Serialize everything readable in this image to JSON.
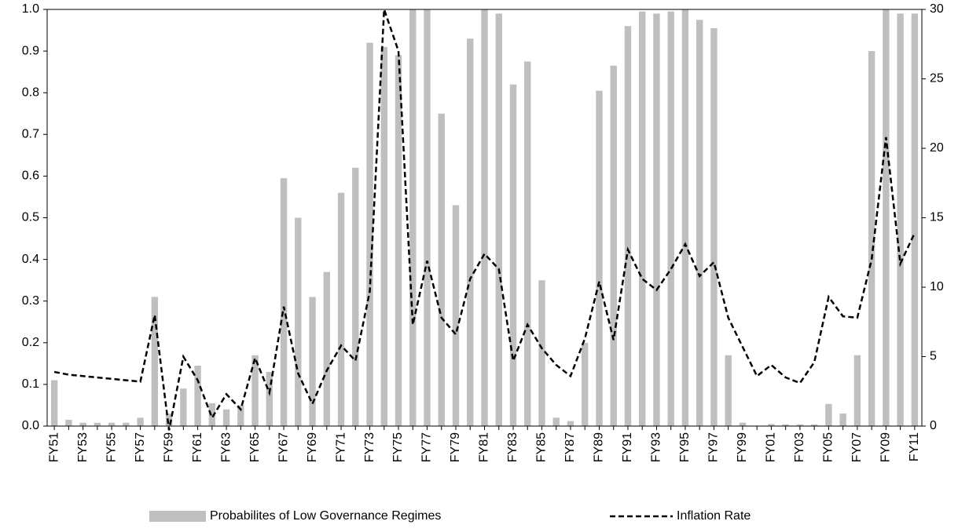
{
  "chart_data": {
    "type": "bar_line",
    "categories": [
      "FY51",
      null,
      "FY53",
      null,
      "FY55",
      null,
      "FY57",
      null,
      "FY59",
      null,
      "FY61",
      null,
      "FY63",
      null,
      "FY65",
      null,
      "FY67",
      null,
      "FY69",
      null,
      "FY71",
      null,
      "FY73",
      null,
      "FY75",
      null,
      "FY77",
      null,
      "FY79",
      null,
      "FY81",
      null,
      "FY83",
      null,
      "FY85",
      null,
      "FY87",
      null,
      "FY89",
      null,
      "FY91",
      null,
      "FY93",
      null,
      "FY95",
      null,
      "FY97",
      null,
      "FY99",
      null,
      "FY01",
      null,
      "FY03",
      null,
      "FY05",
      null,
      "FY07",
      null,
      "FY09",
      null,
      "FY11"
    ],
    "series": [
      {
        "name": "Probabilites of Low Governance Regimes",
        "color": "#bfbfbf",
        "kind": "bar",
        "values": [
          0.11,
          0.015,
          0.008,
          0.008,
          0.008,
          0.008,
          0.02,
          0.31,
          0.03,
          0.09,
          0.145,
          0.055,
          0.04,
          0.05,
          0.17,
          0.13,
          0.595,
          0.5,
          0.31,
          0.37,
          0.56,
          0.62,
          0.92,
          0.91,
          0.89,
          1.0,
          1.0,
          0.75,
          0.53,
          0.93,
          1.0,
          0.99,
          0.82,
          0.875,
          0.35,
          0.02,
          0.012,
          0.2,
          0.805,
          0.865,
          0.96,
          0.995,
          0.99,
          0.995,
          1.0,
          0.975,
          0.955,
          0.17,
          0.008,
          0.0,
          0.005,
          0.004,
          0.004,
          0.004,
          0.053,
          0.03,
          0.17,
          0.9,
          1.0,
          0.99,
          0.99
        ]
      },
      {
        "name": "Inflation Rate",
        "color": "#000000",
        "kind": "line",
        "axis": "y2",
        "values": [
          3.9,
          3.7,
          3.6,
          3.5,
          3.4,
          3.3,
          3.2,
          8.0,
          -0.3,
          5.0,
          3.3,
          0.6,
          2.3,
          1.2,
          4.9,
          2.4,
          8.6,
          3.8,
          1.6,
          4.0,
          5.8,
          4.7,
          9.7,
          30,
          27,
          7.3,
          11.9,
          7.8,
          6.6,
          10.6,
          12.4,
          11.3,
          4.7,
          7.3,
          5.6,
          4.4,
          3.6,
          6.3,
          10.4,
          6.2,
          12.7,
          10.6,
          9.8,
          11.3,
          13.1,
          10.8,
          11.8,
          7.8,
          5.7,
          3.6,
          4.4,
          3.5,
          3.1,
          4.6,
          9.3,
          7.9,
          7.8,
          12.0,
          20.8,
          11.7,
          13.9
        ]
      }
    ],
    "ylim": [
      0,
      1
    ],
    "yticks": [
      {
        "value": 0,
        "label": "0.0"
      },
      0.1,
      0.2,
      0.3,
      0.4,
      0.5,
      0.6,
      0.7,
      0.8,
      0.9,
      {
        "value": 1,
        "label": "1.0"
      }
    ],
    "y2lim": [
      0,
      30
    ],
    "y2ticks": [
      0,
      5,
      10,
      15,
      20,
      25,
      30
    ],
    "legend": "bottom"
  }
}
